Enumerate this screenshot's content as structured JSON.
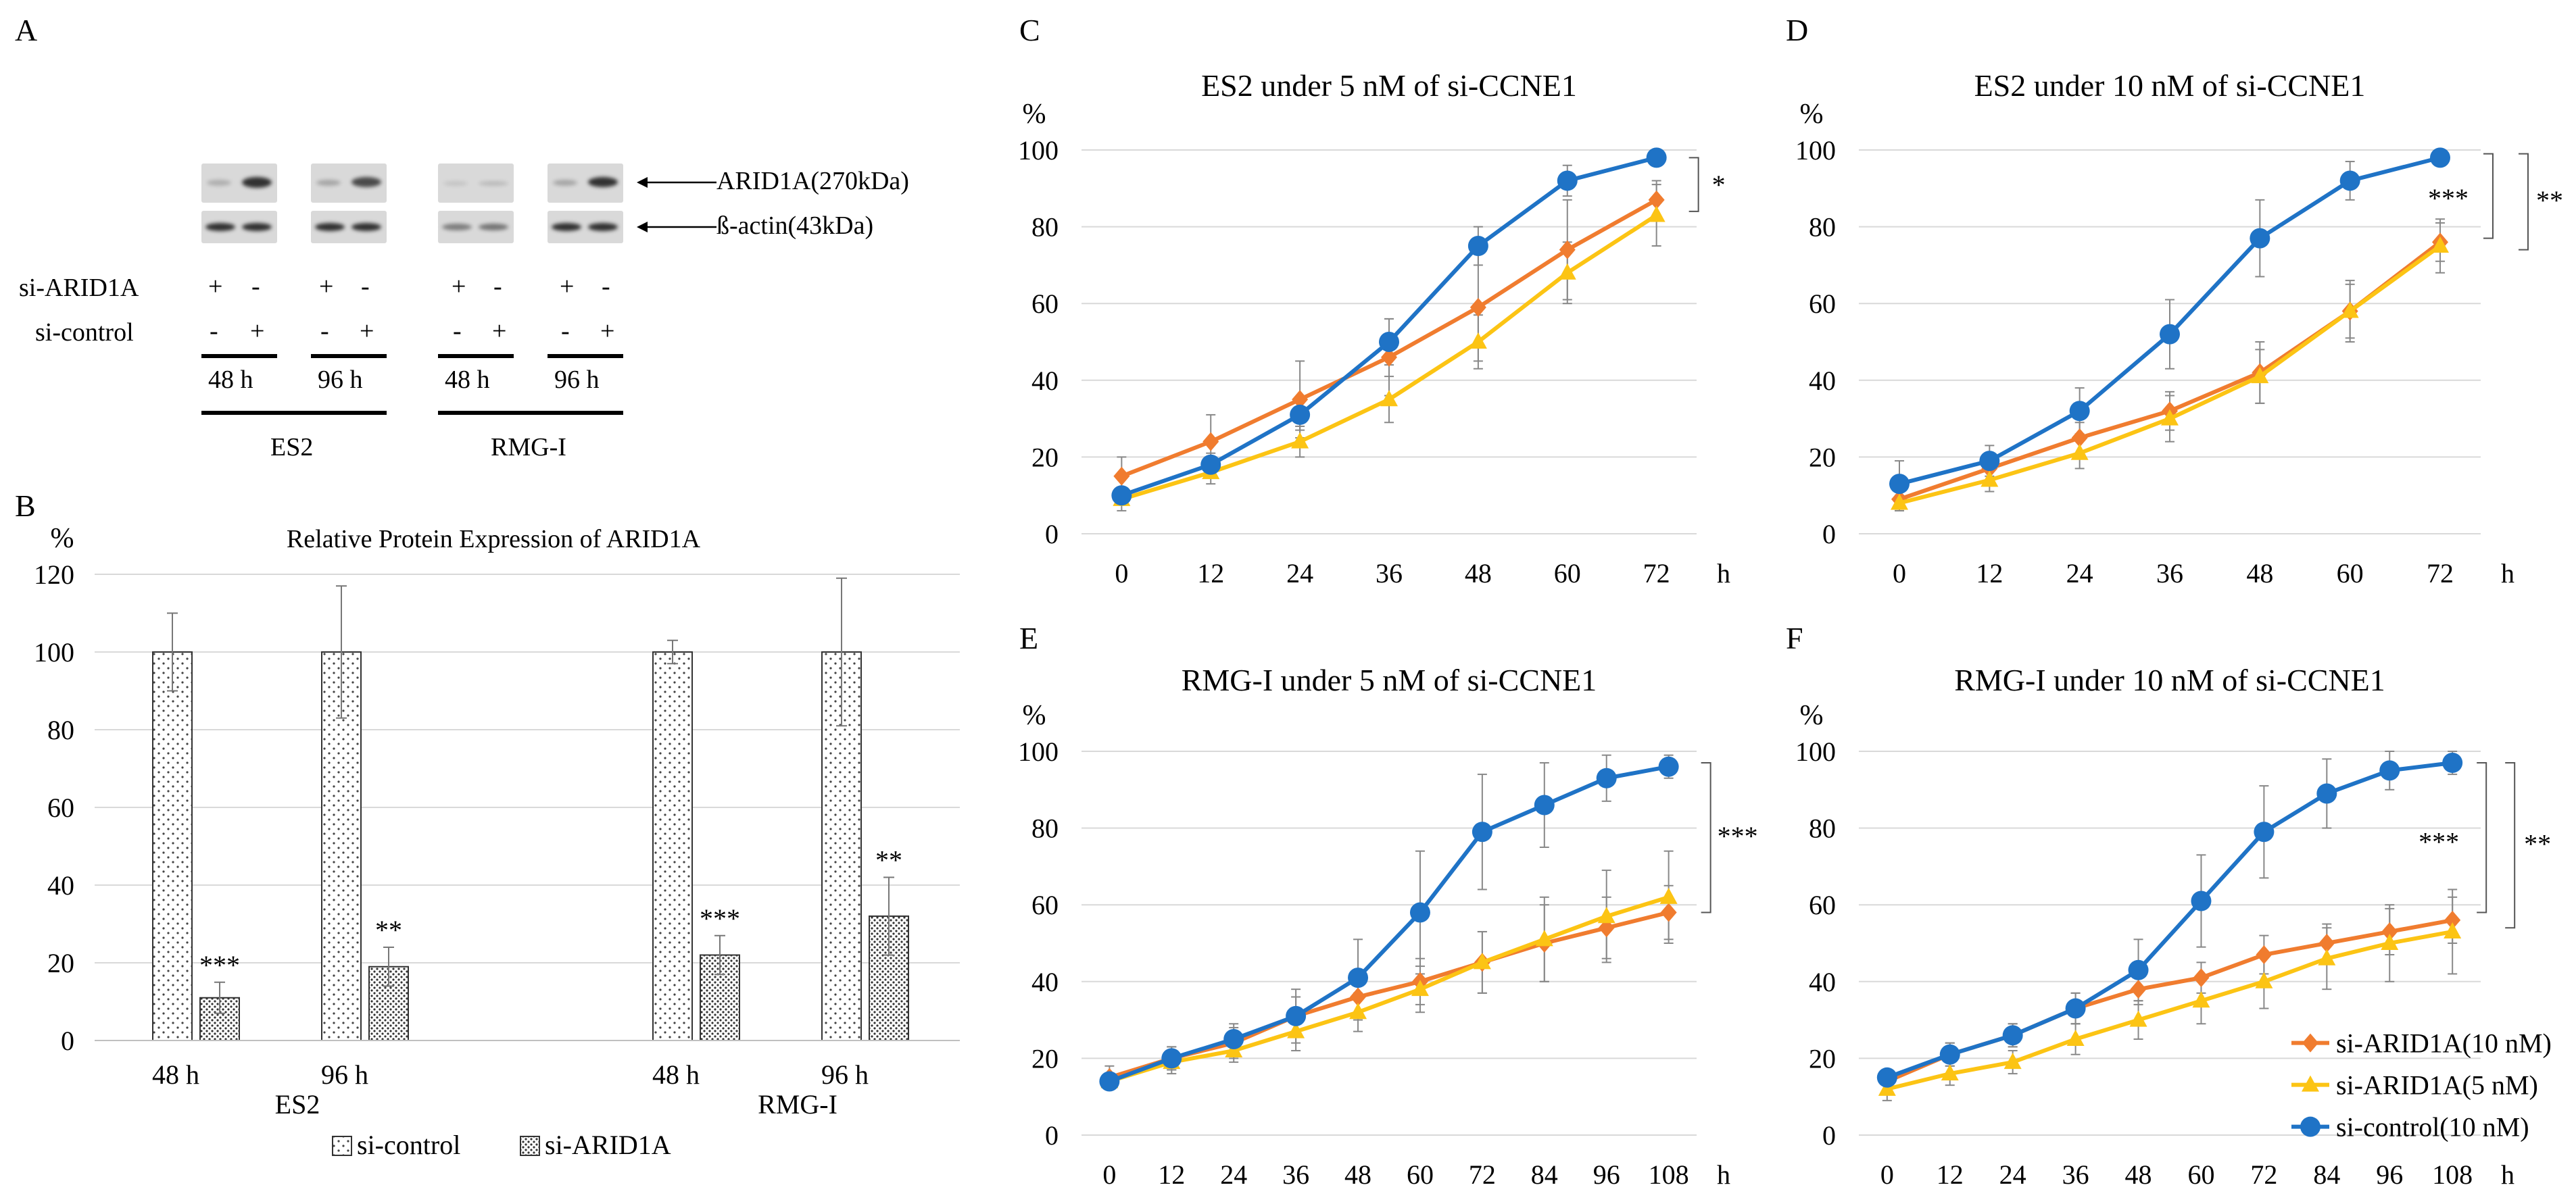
{
  "panelA": {
    "letter": "A",
    "protein_labels": [
      "ARID1A(270kDa)",
      "ß-actin(43kDa)"
    ],
    "row_labels": [
      "si-ARID1A",
      "si-control"
    ],
    "row_signs": [
      [
        "+",
        "-",
        "+",
        "-",
        "+",
        "-",
        "+",
        "-"
      ],
      [
        "-",
        "+",
        "-",
        "+",
        "-",
        "+",
        "-",
        "+"
      ]
    ],
    "times": [
      "48 h",
      "96 h",
      "48 h",
      "96 h"
    ],
    "cell_lines": [
      "ES2",
      "RMG-I"
    ]
  },
  "panelB": {
    "letter": "B",
    "ylabel": "%"
  },
  "panelC": {
    "letter": "C",
    "ylabel": "%"
  },
  "panelD": {
    "letter": "D",
    "ylabel": "%"
  },
  "panelE": {
    "letter": "E",
    "ylabel": "%"
  },
  "panelF": {
    "letter": "F",
    "ylabel": "%"
  },
  "colors": {
    "orange": "#f07c2f",
    "yellow": "#fcc414",
    "blue": "#1f73c6",
    "grid": "#d9d9d9"
  },
  "chart_data": [
    {
      "id": "B",
      "type": "bar",
      "title": "Relative Protein Expression of ARID1A",
      "ylabel": "%",
      "ylim": [
        0,
        120
      ],
      "yticks": [
        0,
        20,
        40,
        60,
        80,
        100,
        120
      ],
      "categories": [
        "48 h",
        "96 h",
        "48 h",
        "96 h"
      ],
      "groups": [
        "ES2",
        "RMG-I"
      ],
      "series": [
        {
          "name": "si-control",
          "values": [
            100,
            100,
            100,
            100
          ],
          "errors": [
            10,
            17,
            3,
            19
          ]
        },
        {
          "name": "si-ARID1A",
          "values": [
            11,
            19,
            22,
            32
          ],
          "errors": [
            4,
            5,
            5,
            10
          ]
        }
      ],
      "annotations": [
        "***",
        "**",
        "***",
        "**"
      ]
    },
    {
      "id": "C",
      "type": "line",
      "title": "ES2 under 5 nM of si-CCNE1",
      "ylabel": "%",
      "xlabel": "h",
      "x": [
        0,
        12,
        24,
        36,
        48,
        60,
        72
      ],
      "ylim": [
        0,
        100
      ],
      "yticks": [
        0,
        20,
        40,
        60,
        80,
        100
      ],
      "series": [
        {
          "name": "si-ARID1A(10 nM)",
          "color": "orange",
          "marker": "diamond",
          "values": [
            15,
            24,
            35,
            46,
            59,
            74,
            87
          ],
          "errors": [
            5,
            7,
            10,
            10,
            14,
            13,
            5
          ]
        },
        {
          "name": "si-ARID1A(5 nM)",
          "color": "yellow",
          "marker": "triangle",
          "values": [
            9,
            16,
            24,
            35,
            50,
            68,
            83
          ],
          "errors": [
            3,
            3,
            4,
            6,
            7,
            8,
            8
          ]
        },
        {
          "name": "si-control(10 nM)",
          "color": "blue",
          "marker": "circle",
          "values": [
            10,
            18,
            31,
            50,
            75,
            92,
            98
          ],
          "errors": [
            2,
            3,
            4,
            6,
            5,
            4,
            1
          ]
        }
      ],
      "significance": [
        "*"
      ]
    },
    {
      "id": "D",
      "type": "line",
      "title": "ES2 under 10 nM of si-CCNE1",
      "ylabel": "%",
      "xlabel": "h",
      "x": [
        0,
        12,
        24,
        36,
        48,
        60,
        72
      ],
      "ylim": [
        0,
        100
      ],
      "yticks": [
        0,
        20,
        40,
        60,
        80,
        100
      ],
      "series": [
        {
          "name": "si-ARID1A(10 nM)",
          "color": "orange",
          "marker": "diamond",
          "values": [
            9,
            17,
            25,
            32,
            42,
            58,
            76
          ],
          "errors": [
            3,
            3,
            4,
            5,
            8,
            7,
            5
          ]
        },
        {
          "name": "si-ARID1A(5 nM)",
          "color": "yellow",
          "marker": "triangle",
          "values": [
            8,
            14,
            21,
            30,
            41,
            58,
            75
          ],
          "errors": [
            2,
            3,
            4,
            6,
            7,
            8,
            7
          ]
        },
        {
          "name": "si-control(10 nM)",
          "color": "blue",
          "marker": "circle",
          "values": [
            13,
            19,
            32,
            52,
            77,
            92,
            98
          ],
          "errors": [
            6,
            4,
            6,
            9,
            10,
            5,
            1
          ]
        }
      ],
      "significance": [
        "***",
        "**"
      ]
    },
    {
      "id": "E",
      "type": "line",
      "title": "RMG-I under 5 nM of si-CCNE1",
      "ylabel": "%",
      "xlabel": "h",
      "x": [
        0,
        12,
        24,
        36,
        48,
        60,
        72,
        84,
        96,
        108
      ],
      "ylim": [
        0,
        100
      ],
      "yticks": [
        0,
        20,
        40,
        60,
        80,
        100
      ],
      "series": [
        {
          "name": "si-ARID1A(10 nM)",
          "color": "orange",
          "marker": "diamond",
          "values": [
            15,
            20,
            24,
            31,
            36,
            40,
            45,
            50,
            54,
            58
          ],
          "errors": [
            3,
            3,
            4,
            5,
            6,
            6,
            8,
            10,
            8,
            7
          ]
        },
        {
          "name": "si-ARID1A(5 nM)",
          "color": "yellow",
          "marker": "triangle",
          "values": [
            14,
            19,
            22,
            27,
            32,
            38,
            45,
            51,
            57,
            62
          ],
          "errors": [
            2,
            3,
            3,
            5,
            5,
            6,
            8,
            11,
            12,
            12
          ]
        },
        {
          "name": "si-control(10 nM)",
          "color": "blue",
          "marker": "circle",
          "values": [
            14,
            20,
            25,
            31,
            41,
            58,
            79,
            86,
            93,
            96
          ],
          "errors": [
            2,
            3,
            4,
            7,
            10,
            16,
            15,
            11,
            6,
            3
          ]
        }
      ],
      "significance": [
        "***"
      ]
    },
    {
      "id": "F",
      "type": "line",
      "title": "RMG-I under 10 nM of si-CCNE1",
      "ylabel": "%",
      "xlabel": "h",
      "x": [
        0,
        12,
        24,
        36,
        48,
        60,
        72,
        84,
        96,
        108
      ],
      "ylim": [
        0,
        100
      ],
      "yticks": [
        0,
        20,
        40,
        60,
        80,
        100
      ],
      "series": [
        {
          "name": "si-ARID1A(10 nM)",
          "color": "orange",
          "marker": "diamond",
          "values": [
            14,
            21,
            26,
            33,
            38,
            41,
            47,
            50,
            53,
            56
          ],
          "errors": [
            3,
            3,
            3,
            4,
            4,
            4,
            5,
            5,
            6,
            6
          ]
        },
        {
          "name": "si-ARID1A(5 nM)",
          "color": "yellow",
          "marker": "triangle",
          "values": [
            12,
            16,
            19,
            25,
            30,
            35,
            40,
            46,
            50,
            53
          ],
          "errors": [
            3,
            3,
            3,
            4,
            5,
            6,
            7,
            8,
            10,
            11
          ]
        },
        {
          "name": "si-control(10 nM)",
          "color": "blue",
          "marker": "circle",
          "values": [
            15,
            21,
            26,
            33,
            43,
            61,
            79,
            89,
            95,
            97
          ],
          "errors": [
            2,
            3,
            3,
            4,
            8,
            12,
            12,
            9,
            5,
            3
          ]
        }
      ],
      "legend": [
        "si-ARID1A(10 nM)",
        "si-ARID1A(5 nM)",
        "si-control(10 nM)"
      ],
      "significance": [
        "***",
        "**"
      ]
    }
  ]
}
